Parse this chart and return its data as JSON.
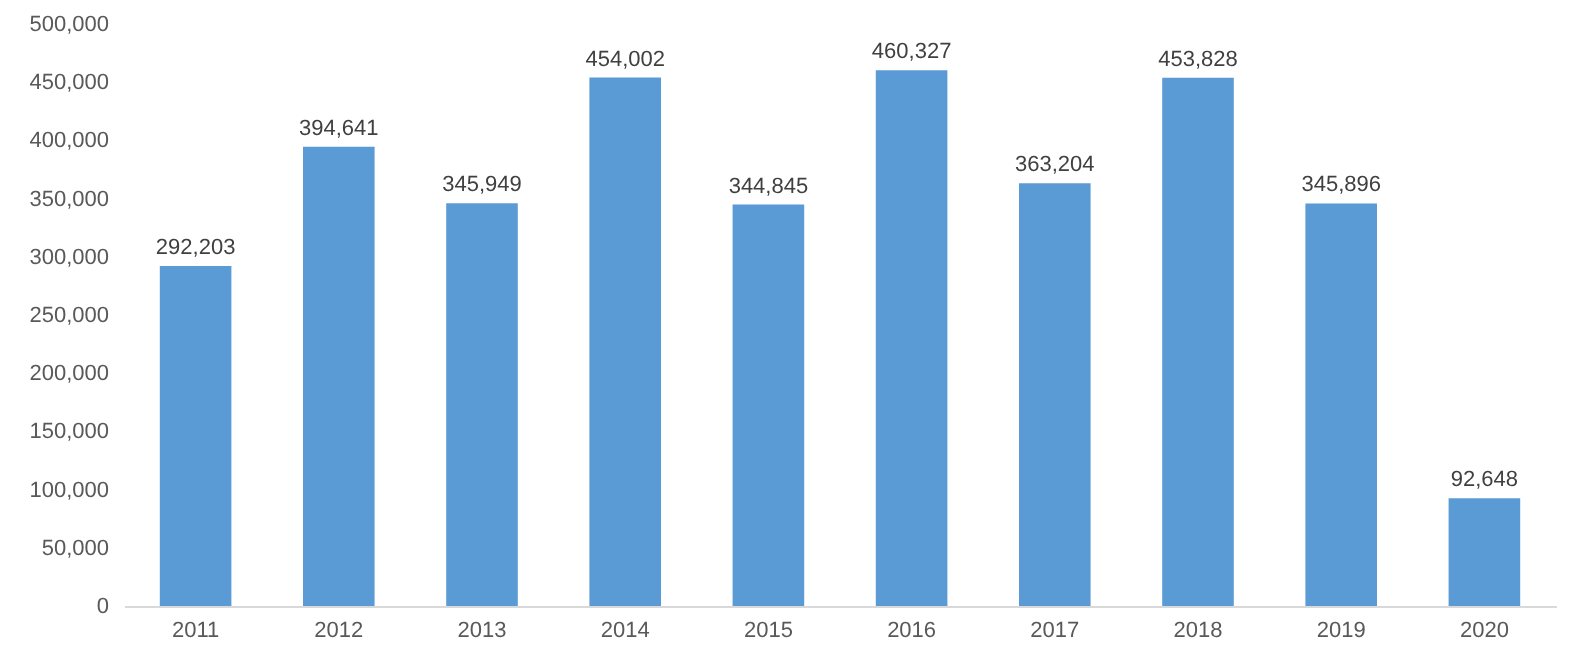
{
  "chart_data": {
    "type": "bar",
    "categories": [
      "2011",
      "2012",
      "2013",
      "2014",
      "2015",
      "2016",
      "2017",
      "2018",
      "2019",
      "2020"
    ],
    "values": [
      292203,
      394641,
      345949,
      454002,
      344845,
      460327,
      363204,
      453828,
      345896,
      92648
    ],
    "value_labels": [
      "292,203",
      "394,641",
      "345,949",
      "454,002",
      "344,845",
      "460,327",
      "363,204",
      "453,828",
      "345,896",
      "92,648"
    ],
    "color": "#5b9bd5",
    "ylim": [
      0,
      500000
    ],
    "yticks": [
      0,
      {
        "value": 50000,
        "label": "50,000"
      },
      {
        "value": 100000,
        "label": "100,000"
      },
      {
        "value": 150000,
        "label": "150,000"
      },
      {
        "value": 200000,
        "label": "200,000"
      },
      {
        "value": 250000,
        "label": "250,000"
      },
      {
        "value": 300000,
        "label": "300,000"
      },
      {
        "value": 350000,
        "label": "350,000"
      },
      {
        "value": 400000,
        "label": "400,000"
      },
      {
        "value": 450000,
        "label": "450,000"
      },
      {
        "value": 500000,
        "label": "500,000"
      }
    ],
    "grid": false
  }
}
